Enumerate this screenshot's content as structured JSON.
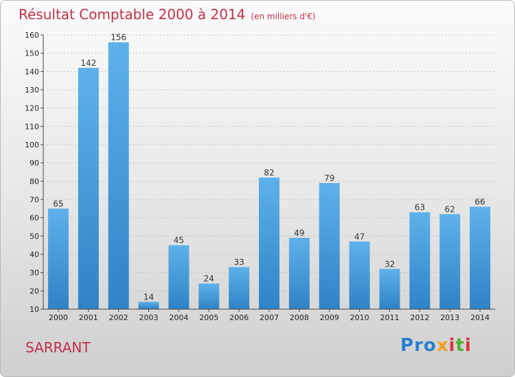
{
  "title": "Résultat Comptable 2000 à 2014",
  "unit_label": "(en milliers d'€)",
  "commune": "SARRANT",
  "logo": "Proxiti",
  "colors": {
    "bar_top": "#5eb1ea",
    "bar_bottom": "#2f83c6",
    "title": "#c0304a"
  },
  "chart_data": {
    "type": "bar",
    "title": "Résultat Comptable 2000 à 2014",
    "xlabel": "",
    "ylabel": "",
    "categories": [
      "2000",
      "2001",
      "2002",
      "2003",
      "2004",
      "2005",
      "2006",
      "2007",
      "2008",
      "2009",
      "2010",
      "2011",
      "2012",
      "2013",
      "2014"
    ],
    "values": [
      65,
      142,
      156,
      14,
      45,
      24,
      33,
      82,
      49,
      79,
      47,
      32,
      63,
      62,
      66
    ],
    "ylim": [
      10,
      160
    ],
    "yticks": [
      10,
      20,
      30,
      40,
      50,
      60,
      70,
      80,
      90,
      100,
      110,
      120,
      130,
      140,
      150,
      160
    ],
    "grid": true,
    "legend": "none"
  }
}
